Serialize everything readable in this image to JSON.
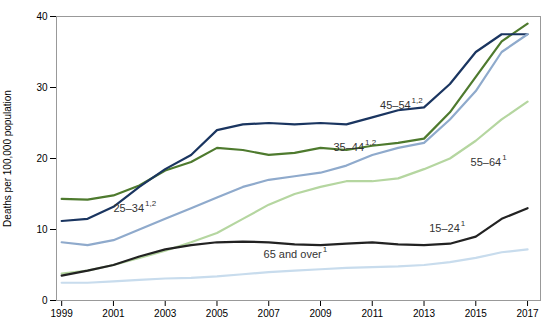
{
  "chart_data": {
    "type": "line",
    "ylabel": "Deaths per 100,000 population",
    "x": [
      1999,
      2000,
      2001,
      2002,
      2003,
      2004,
      2005,
      2006,
      2007,
      2008,
      2009,
      2010,
      2011,
      2012,
      2013,
      2014,
      2015,
      2016,
      2017
    ],
    "series": [
      {
        "name": "35–44",
        "superscript": "1,2",
        "color": "#4e7a2e",
        "label_x": 2009.5,
        "label_y": 21.5,
        "values": [
          14.3,
          14.2,
          14.8,
          16.2,
          18.3,
          19.5,
          21.5,
          21.2,
          20.5,
          20.8,
          21.5,
          21.2,
          21.8,
          22.2,
          22.8,
          26.5,
          31.5,
          36.5,
          39.0
        ]
      },
      {
        "name": "45–54",
        "superscript": "1,2",
        "color": "#1a3560",
        "label_x": 2011.3,
        "label_y": 27.5,
        "values": [
          11.2,
          11.5,
          13.2,
          16.0,
          18.5,
          20.5,
          24.0,
          24.8,
          25.0,
          24.8,
          25.0,
          24.8,
          25.8,
          26.8,
          27.2,
          30.5,
          35.0,
          37.5,
          37.5
        ]
      },
      {
        "name": "25–34",
        "superscript": "1,2",
        "color": "#8faacc",
        "label_x": 2001.0,
        "label_y": 13.0,
        "values": [
          8.2,
          7.8,
          8.5,
          10.0,
          11.5,
          13.0,
          14.5,
          16.0,
          17.0,
          17.5,
          18.0,
          19.0,
          20.5,
          21.5,
          22.2,
          25.5,
          29.5,
          35.0,
          37.5
        ]
      },
      {
        "name": "55–64",
        "superscript": "1",
        "color": "#b5d6a0",
        "label_x": 2014.8,
        "label_y": 19.5,
        "values": [
          3.8,
          4.2,
          5.0,
          6.0,
          7.0,
          8.2,
          9.5,
          11.5,
          13.5,
          15.0,
          16.0,
          16.8,
          16.8,
          17.2,
          18.5,
          20.0,
          22.5,
          25.5,
          28.0
        ]
      },
      {
        "name": "15–24",
        "superscript": "1",
        "color": "#222222",
        "label_x": 2013.2,
        "label_y": 10.2,
        "values": [
          3.5,
          4.2,
          5.0,
          6.2,
          7.2,
          7.8,
          8.2,
          8.3,
          8.2,
          7.9,
          7.8,
          8.0,
          8.2,
          7.9,
          7.8,
          8.0,
          9.0,
          11.5,
          13.0
        ]
      },
      {
        "name": "65 and over",
        "superscript": "1",
        "color": "#c8dced",
        "label_x": 2006.8,
        "label_y": 6.5,
        "values": [
          2.5,
          2.5,
          2.7,
          2.9,
          3.1,
          3.2,
          3.4,
          3.7,
          4.0,
          4.2,
          4.4,
          4.6,
          4.7,
          4.8,
          5.0,
          5.4,
          6.0,
          6.8,
          7.2
        ]
      }
    ],
    "xlim": [
      1998.8,
      2017.5
    ],
    "xticks": [
      1999,
      2001,
      2003,
      2005,
      2007,
      2009,
      2011,
      2013,
      2015,
      2017
    ],
    "ylim": [
      0,
      40
    ],
    "yticks": [
      0,
      10,
      20,
      30,
      40
    ],
    "grid": false
  }
}
